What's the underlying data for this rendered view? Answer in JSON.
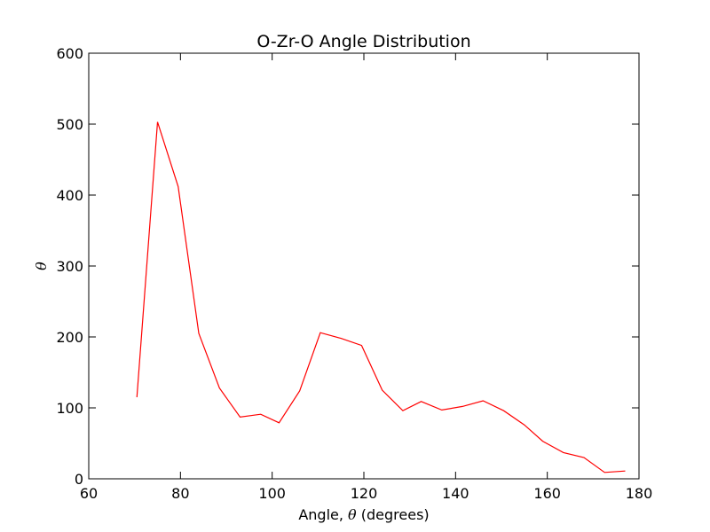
{
  "chart_data": {
    "type": "line",
    "title": "O-Zr-O Angle Distribution",
    "xlabel": {
      "prefix": "Angle, ",
      "symbol": "θ",
      "suffix": " (degrees)"
    },
    "ylabel": {
      "symbol": "θ"
    },
    "xlim": [
      60,
      180
    ],
    "ylim": [
      0,
      600
    ],
    "xticks": [
      60,
      80,
      100,
      120,
      140,
      160,
      180
    ],
    "yticks": [
      0,
      100,
      200,
      300,
      400,
      500,
      600
    ],
    "grid": false,
    "series": [
      {
        "color": "#ff0000",
        "x": [
          70.5,
          75,
          79.5,
          84,
          88.5,
          93,
          97.5,
          101.5,
          106,
          110.5,
          115,
          119.5,
          124,
          128.5,
          132.5,
          137,
          141.5,
          146,
          150.5,
          155,
          159,
          163.5,
          168,
          172.5,
          177
        ],
        "y": [
          115,
          503,
          412,
          205,
          128,
          87,
          91,
          79,
          124,
          206,
          198,
          188,
          125,
          96,
          109,
          97,
          102,
          110,
          96,
          76,
          53,
          37,
          30,
          9,
          11
        ]
      }
    ]
  }
}
